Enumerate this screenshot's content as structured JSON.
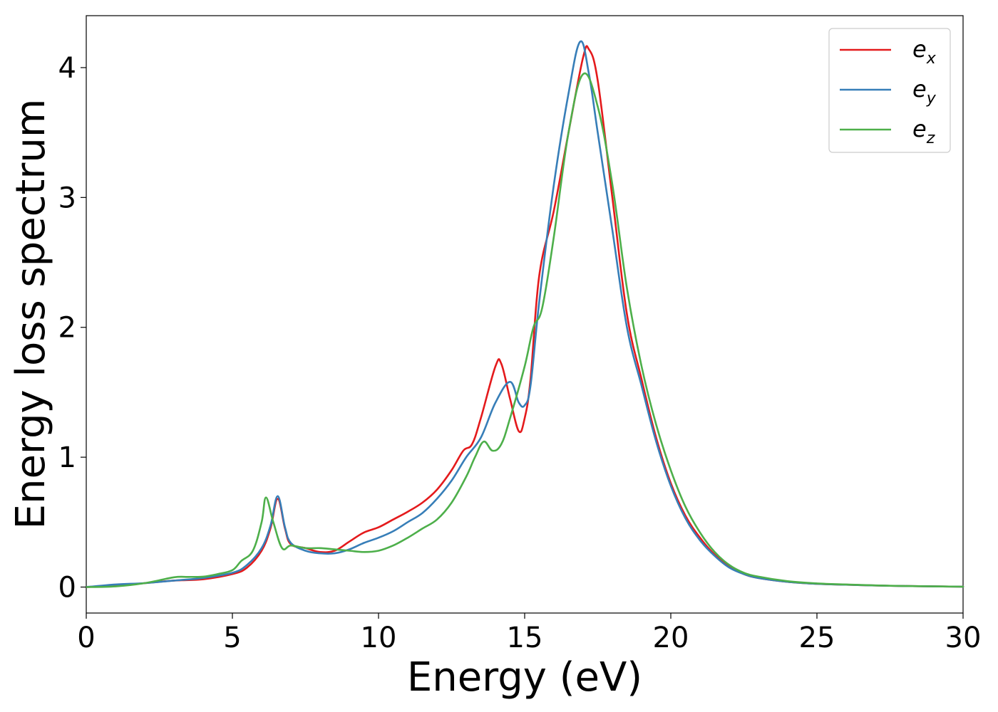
{
  "chart_data": {
    "type": "line",
    "title": "",
    "xlabel": "Energy (eV)",
    "ylabel": "Energy loss spectrum",
    "xlim": [
      0,
      30
    ],
    "ylim": [
      -0.2,
      4.4
    ],
    "xticks": [
      0,
      5,
      10,
      15,
      20,
      25,
      30
    ],
    "xtick_labels": [
      "0",
      "5",
      "10",
      "15",
      "20",
      "25",
      "30"
    ],
    "yticks": [
      0,
      1,
      2,
      3,
      4
    ],
    "ytick_labels": [
      "0",
      "1",
      "2",
      "3",
      "4"
    ],
    "grid": false,
    "legend_position": "top-right",
    "series": [
      {
        "name": "e_x",
        "label_base": "e",
        "label_sub": "x",
        "color": "#e41a1c",
        "x": [
          0,
          1,
          2,
          3,
          4,
          5,
          5.5,
          6,
          6.3,
          6.55,
          6.8,
          7,
          7.5,
          8,
          8.5,
          9,
          9.5,
          10,
          10.5,
          11,
          11.5,
          12,
          12.5,
          12.9,
          13.2,
          13.5,
          14,
          14.2,
          14.5,
          14.8,
          15,
          15.2,
          15.5,
          16,
          16.5,
          17,
          17.2,
          17.5,
          18,
          18.5,
          19,
          19.5,
          20,
          20.5,
          21,
          21.5,
          22,
          22.5,
          23,
          24,
          25,
          26,
          27,
          28,
          29,
          30
        ],
        "y": [
          0,
          0.01,
          0.03,
          0.05,
          0.06,
          0.1,
          0.15,
          0.28,
          0.45,
          0.68,
          0.45,
          0.33,
          0.3,
          0.27,
          0.28,
          0.35,
          0.42,
          0.46,
          0.52,
          0.58,
          0.65,
          0.75,
          0.9,
          1.05,
          1.1,
          1.3,
          1.7,
          1.72,
          1.45,
          1.2,
          1.3,
          1.6,
          2.4,
          2.9,
          3.5,
          4.08,
          4.14,
          3.9,
          3.0,
          2.1,
          1.6,
          1.15,
          0.8,
          0.55,
          0.38,
          0.25,
          0.16,
          0.1,
          0.07,
          0.04,
          0.025,
          0.018,
          0.012,
          0.008,
          0.005,
          0.003
        ]
      },
      {
        "name": "e_y",
        "label_base": "e",
        "label_sub": "y",
        "color": "#377eb8",
        "x": [
          0,
          1,
          2,
          3,
          4,
          5,
          5.5,
          6,
          6.3,
          6.55,
          6.8,
          7,
          7.5,
          8,
          8.5,
          9,
          9.5,
          10,
          10.5,
          11,
          11.5,
          12,
          12.5,
          13,
          13.5,
          14,
          14.5,
          14.8,
          15,
          15.2,
          15.5,
          16,
          16.5,
          16.9,
          17.2,
          17.5,
          18,
          18.5,
          19,
          19.5,
          20,
          20.5,
          21,
          21.5,
          22,
          22.5,
          23,
          24,
          25,
          26,
          27,
          28,
          29,
          30
        ],
        "y": [
          0,
          0.02,
          0.03,
          0.05,
          0.07,
          0.11,
          0.17,
          0.3,
          0.47,
          0.7,
          0.46,
          0.34,
          0.28,
          0.26,
          0.26,
          0.29,
          0.34,
          0.38,
          0.43,
          0.5,
          0.57,
          0.68,
          0.82,
          1.0,
          1.15,
          1.42,
          1.58,
          1.42,
          1.4,
          1.55,
          2.2,
          3.1,
          3.8,
          4.2,
          3.95,
          3.5,
          2.75,
          2.0,
          1.55,
          1.12,
          0.78,
          0.53,
          0.36,
          0.24,
          0.15,
          0.1,
          0.07,
          0.04,
          0.025,
          0.018,
          0.012,
          0.008,
          0.005,
          0.003
        ]
      },
      {
        "name": "e_z",
        "label_base": "e",
        "label_sub": "z",
        "color": "#4daf4a",
        "x": [
          0,
          1,
          2,
          3,
          3.5,
          4,
          4.5,
          5,
          5.3,
          5.7,
          6,
          6.15,
          6.4,
          6.7,
          7,
          7.5,
          8,
          8.5,
          9,
          9.5,
          10,
          10.5,
          11,
          11.5,
          12,
          12.5,
          13,
          13.3,
          13.6,
          13.9,
          14.2,
          14.5,
          15,
          15.3,
          15.6,
          16,
          16.5,
          17,
          17.5,
          18,
          18.5,
          19,
          19.5,
          20,
          20.5,
          21,
          21.5,
          22,
          22.5,
          23,
          24,
          25,
          26,
          27,
          28,
          29,
          30
        ],
        "y": [
          0,
          0.005,
          0.03,
          0.075,
          0.078,
          0.08,
          0.1,
          0.13,
          0.2,
          0.28,
          0.5,
          0.69,
          0.5,
          0.3,
          0.32,
          0.3,
          0.3,
          0.29,
          0.28,
          0.27,
          0.28,
          0.32,
          0.38,
          0.45,
          0.52,
          0.65,
          0.85,
          1.0,
          1.12,
          1.05,
          1.1,
          1.3,
          1.7,
          2.0,
          2.15,
          2.7,
          3.5,
          3.95,
          3.7,
          3.1,
          2.3,
          1.7,
          1.25,
          0.9,
          0.62,
          0.42,
          0.27,
          0.17,
          0.11,
          0.08,
          0.045,
          0.028,
          0.02,
          0.013,
          0.008,
          0.005,
          0.003
        ]
      }
    ]
  }
}
